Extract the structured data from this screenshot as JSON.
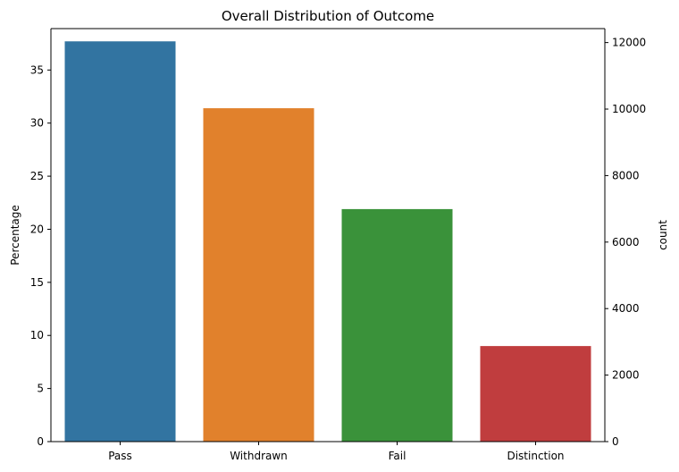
{
  "chart_data": {
    "type": "bar",
    "title": "Overall Distribution of Outcome",
    "xlabel": "",
    "ylabel": "Percentage",
    "y2label": "count",
    "categories": [
      "Pass",
      "Withdrawn",
      "Fail",
      "Distinction"
    ],
    "values": [
      37.7,
      31.4,
      21.9,
      9.0
    ],
    "colors": [
      "#3274a1",
      "#e1812c",
      "#3a923a",
      "#c03d3e"
    ],
    "ylim": [
      0,
      38.9
    ],
    "yticks": [
      0,
      5,
      10,
      15,
      20,
      25,
      30,
      35
    ],
    "y2lim": [
      0,
      12420
    ],
    "y2ticks": [
      0,
      2000,
      4000,
      6000,
      8000,
      10000,
      12000
    ],
    "grid": false,
    "legend": "none"
  }
}
